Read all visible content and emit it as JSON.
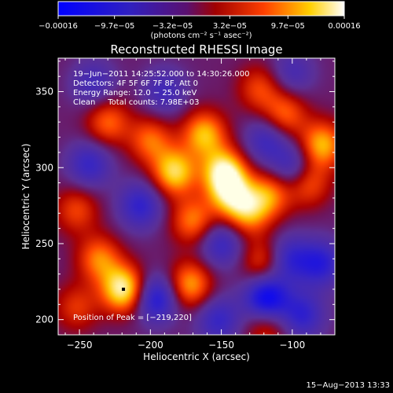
{
  "colorbar": {
    "ticks": [
      "−0.00016",
      "−9.7e−05",
      "−3.2e−05",
      "3.2e−05",
      "9.7e−05",
      "0.00016"
    ],
    "tick_values": [
      -0.00016,
      -9.7e-05,
      -3.2e-05,
      3.2e-05,
      9.7e-05,
      0.00016
    ],
    "range": [
      -0.00016,
      0.00016
    ],
    "unit_label": "(photons cm⁻² s⁻¹ asec⁻²)"
  },
  "chart_data": {
    "type": "heatmap",
    "title": "Reconstructed RHESSI Image",
    "xlabel": "Heliocentric X (arcsec)",
    "ylabel": "Heliocentric Y (arcsec)",
    "xlim": [
      -265,
      -70
    ],
    "ylim": [
      190,
      372
    ],
    "x_ticks": [
      -250,
      -200,
      -150,
      -100
    ],
    "y_ticks": [
      200,
      250,
      300,
      350
    ],
    "x_tick_labels": [
      "−250",
      "−200",
      "−150",
      "−100"
    ],
    "y_tick_labels": [
      "200",
      "250",
      "300",
      "350"
    ],
    "colormap": "blue-violet-red-yellow-white",
    "peak": {
      "x": -219,
      "y": 220
    },
    "annotations": [
      "19−Jun−2011 14:25:52.000 to 14:30:26.000",
      "Detectors: 4F 5F 6F 7F 8F, Att 0",
      "Energy Range: 12.0 − 25.0 keV",
      "Clean     Total counts: 7.98E+03",
      "Position of Peak = [−219,220]"
    ],
    "hotspots": [
      {
        "x": -230,
        "y": 330,
        "v": 0.55
      },
      {
        "x": -200,
        "y": 318,
        "v": 0.55
      },
      {
        "x": -183,
        "y": 297,
        "v": 0.85
      },
      {
        "x": -162,
        "y": 322,
        "v": 0.75
      },
      {
        "x": -148,
        "y": 297,
        "v": 0.95
      },
      {
        "x": -143,
        "y": 282,
        "v": 0.7
      },
      {
        "x": -170,
        "y": 265,
        "v": 0.6
      },
      {
        "x": -219,
        "y": 220,
        "v": 1.0
      },
      {
        "x": -236,
        "y": 240,
        "v": 0.6
      },
      {
        "x": -172,
        "y": 223,
        "v": 0.7
      },
      {
        "x": -131,
        "y": 270,
        "v": 0.6
      },
      {
        "x": -116,
        "y": 282,
        "v": 0.6
      },
      {
        "x": -89,
        "y": 290,
        "v": 0.55
      },
      {
        "x": -79,
        "y": 315,
        "v": 0.75
      },
      {
        "x": -105,
        "y": 335,
        "v": 0.55
      },
      {
        "x": -123,
        "y": 352,
        "v": 0.45
      },
      {
        "x": -252,
        "y": 272,
        "v": 0.45
      },
      {
        "x": -120,
        "y": 238,
        "v": 0.5
      },
      {
        "x": -118,
        "y": 195,
        "v": 0.4
      },
      {
        "x": -252,
        "y": 208,
        "v": 0.4
      }
    ],
    "coldspots": [
      {
        "x": -118,
        "y": 214,
        "v": -0.9
      },
      {
        "x": -196,
        "y": 214,
        "v": -0.7
      },
      {
        "x": -103,
        "y": 240,
        "v": -0.55
      },
      {
        "x": -80,
        "y": 237,
        "v": -0.6
      },
      {
        "x": -93,
        "y": 203,
        "v": -0.55
      },
      {
        "x": -150,
        "y": 250,
        "v": -0.5
      },
      {
        "x": -207,
        "y": 275,
        "v": -0.55
      },
      {
        "x": -243,
        "y": 302,
        "v": -0.5
      },
      {
        "x": -99,
        "y": 300,
        "v": -0.5
      },
      {
        "x": -152,
        "y": 200,
        "v": -0.5
      },
      {
        "x": -118,
        "y": 318,
        "v": -0.45
      },
      {
        "x": -240,
        "y": 355,
        "v": -0.4
      },
      {
        "x": -190,
        "y": 350,
        "v": -0.4
      },
      {
        "x": -100,
        "y": 362,
        "v": -0.35
      }
    ]
  },
  "footer_date": "15−Aug−2013 13:33"
}
